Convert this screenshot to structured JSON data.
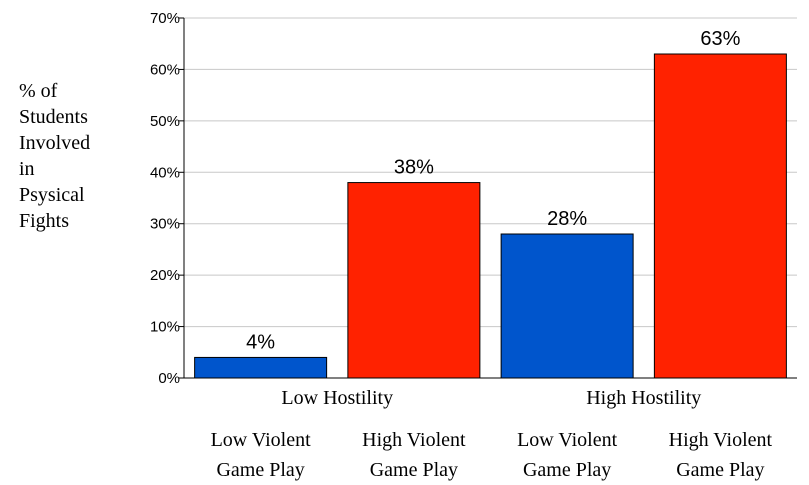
{
  "chart_data": {
    "type": "bar",
    "ylabel_lines": [
      "% of",
      "Students",
      "Involved",
      "in",
      "Psysical",
      "Fights"
    ],
    "ylim": [
      0,
      70
    ],
    "y_ticks": [
      "0%",
      "10%",
      "20%",
      "30%",
      "40%",
      "50%",
      "60%",
      "70%"
    ],
    "grid": true,
    "groups": [
      "Low Hostility",
      "High Hostility"
    ],
    "categories": [
      "Low Violent\nGame Play",
      "High Violent\nGame Play",
      "Low Violent\nGame Play",
      "High Violent\nGame Play"
    ],
    "values": [
      4,
      38,
      28,
      63
    ],
    "data_labels": [
      "4%",
      "38%",
      "28%",
      "63%"
    ],
    "colors": [
      "#0055cc",
      "#ff2200",
      "#0055cc",
      "#ff2200"
    ]
  }
}
